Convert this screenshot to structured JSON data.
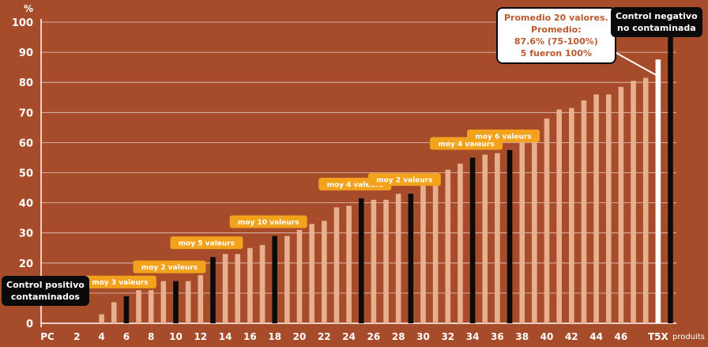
{
  "chart_data": {
    "type": "bar",
    "ylabel": "%",
    "xlabel": "produits",
    "ylim": [
      0,
      100
    ],
    "yticks": [
      0,
      10,
      20,
      30,
      40,
      50,
      60,
      70,
      80,
      90,
      100
    ],
    "grid": true,
    "xtick_labels": [
      "PC",
      "2",
      "4",
      "6",
      "8",
      "10",
      "12",
      "14",
      "16",
      "18",
      "20",
      "22",
      "24",
      "26",
      "28",
      "30",
      "32",
      "34",
      "36",
      "38",
      "40",
      "42",
      "44",
      "46",
      "T5X"
    ],
    "values": [
      0,
      0,
      0,
      0,
      3,
      7,
      9,
      11,
      11,
      14,
      14,
      14,
      16,
      22,
      23,
      23,
      25,
      26,
      29,
      29,
      31,
      33,
      34,
      38.5,
      39,
      41.5,
      41,
      41,
      43,
      43,
      49.5,
      50,
      51,
      53,
      55,
      56,
      56.5,
      57.5,
      61,
      62,
      68,
      71,
      71.5,
      74,
      76,
      76,
      78.5,
      80.5,
      81.5,
      87.6,
      100
    ],
    "bar_kinds": [
      "none",
      "none",
      "none",
      "none",
      "tan",
      "tan",
      "black",
      "tan",
      "tan",
      "tan",
      "black",
      "tan",
      "tan",
      "black",
      "tan",
      "tan",
      "tan",
      "tan",
      "black",
      "tan",
      "tan",
      "tan",
      "tan",
      "tan",
      "tan",
      "black",
      "tan",
      "tan",
      "tan",
      "black",
      "tan",
      "tan",
      "tan",
      "tan",
      "black",
      "tan",
      "tan",
      "black",
      "tan",
      "tan",
      "tan",
      "tan",
      "tan",
      "tan",
      "tan",
      "tan",
      "tan",
      "tan",
      "tan",
      "white",
      "black"
    ],
    "group_labels": [
      {
        "text": "moy 3 valeurs",
        "bar": 6
      },
      {
        "text": "moy 2 valeurs",
        "bar": 10
      },
      {
        "text": "moy 5 valeurs",
        "bar": 13
      },
      {
        "text": "moy 10 valeurs",
        "bar": 18
      },
      {
        "text": "moy 4 valeurs",
        "bar": 25
      },
      {
        "text": "moy 2 valeurs",
        "bar": 29
      },
      {
        "text": "moy 4 valeurs",
        "bar": 34
      },
      {
        "text": "moy 6 valeurs",
        "bar": 37
      }
    ],
    "callouts": {
      "positive_control": [
        "Control positivo",
        "contaminados"
      ],
      "average": [
        "Promedio 20 valores.",
        "Promedio:",
        "87.6% (75-100%)",
        "5 fueron 100%"
      ],
      "negative_control": [
        "Control negativo",
        "no contaminada"
      ]
    },
    "colors": {
      "background": "#a74c2a",
      "bar_tan": "#e8b08e",
      "bar_black": "#0a0a0a",
      "bar_white": "#ffffff",
      "label_box": "#f3a21b",
      "grid": "#ffffff"
    }
  }
}
